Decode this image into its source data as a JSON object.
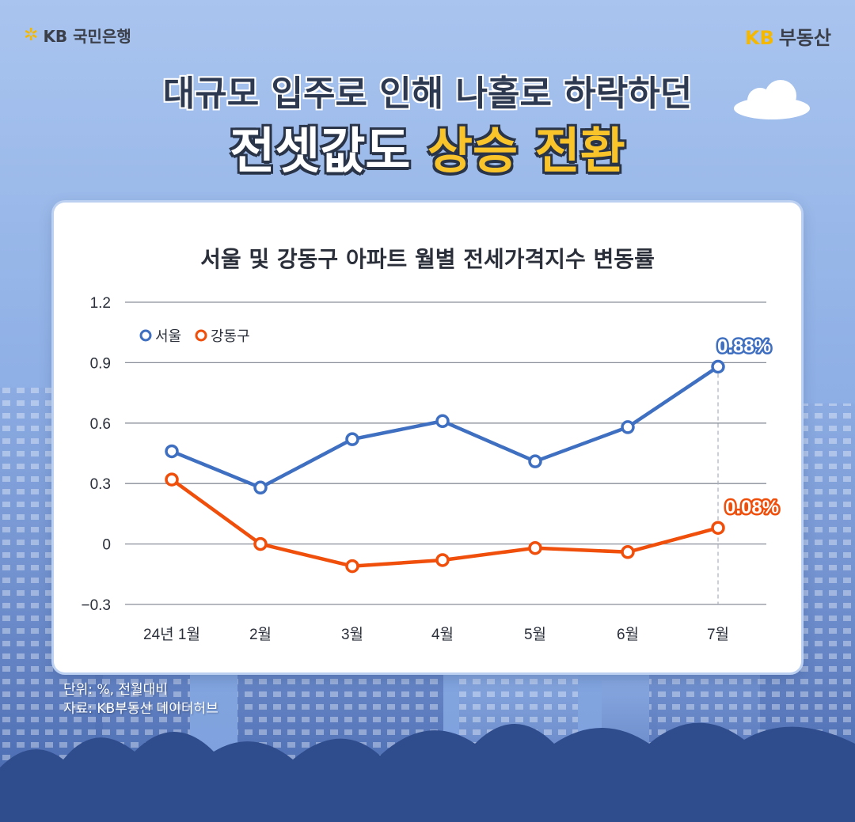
{
  "brand": {
    "left_logo": "KB 국민은행",
    "right_logo_kb": "KB",
    "right_logo_text": "부동산"
  },
  "headline": {
    "line1": "대규모 입주로 인해 나홀로 하락하던",
    "line2_plain": "전셋값도",
    "line2_highlight": "상승 전환"
  },
  "colors": {
    "seoul": "#3f6fc0",
    "gangdong": "#f04e0b",
    "highlight": "#f9c32a"
  },
  "chart_data": {
    "type": "line",
    "title": "서울 및 강동구 아파트 월별 전세가격지수 변동률",
    "categories": [
      "24년 1월",
      "2월",
      "3월",
      "4월",
      "5월",
      "6월",
      "7월"
    ],
    "series": [
      {
        "name": "서울",
        "values": [
          0.46,
          0.28,
          0.52,
          0.61,
          0.41,
          0.58,
          0.88
        ]
      },
      {
        "name": "강동구",
        "values": [
          0.32,
          0.0,
          -0.11,
          -0.08,
          -0.02,
          -0.04,
          0.08
        ]
      }
    ],
    "yticks": [
      "1.2",
      "0.9",
      "0.6",
      "0.3",
      "0",
      "−0.3"
    ],
    "ylim": [
      -0.3,
      1.2
    ],
    "grid": true,
    "legend": "top-left",
    "annotations": {
      "seoul_last": "0.88%",
      "gangdong_last": "0.08%"
    }
  },
  "footer": {
    "unit": "단위: %, 전월대비",
    "source": "자료: KB부동산 데이터허브"
  }
}
